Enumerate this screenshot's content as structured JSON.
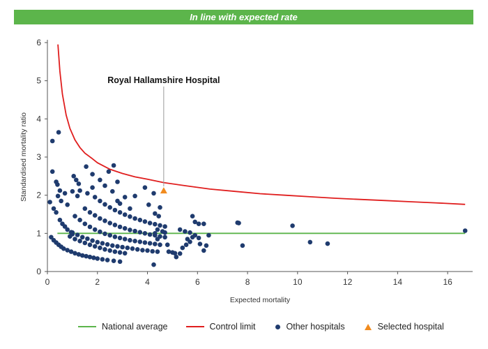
{
  "banner": {
    "text": "In line with expected rate"
  },
  "colors": {
    "banner": "#5cb54b",
    "national_average": "#5cb54b",
    "control_limit": "#e01e1e",
    "other_hospitals": "#1f3b6e",
    "selected_hospital": "#f18b1e"
  },
  "chart_data": {
    "type": "scatter",
    "xlabel": "Expected mortality",
    "ylabel": "Standardised mortality ratio",
    "xlim": [
      0,
      17
    ],
    "ylim": [
      0,
      6
    ],
    "xticks": [
      0,
      2,
      4,
      6,
      8,
      10,
      12,
      14,
      16
    ],
    "yticks": [
      0,
      1,
      2,
      3,
      4,
      5,
      6
    ],
    "grid": false,
    "legend_position": "bottom",
    "annotation": {
      "text": "Royal Hallamshire Hospital",
      "x": 4.65,
      "y": 2.12
    },
    "national_average": {
      "name": "National average",
      "y": 1,
      "x_range": [
        0.4,
        16.7
      ]
    },
    "control_limit": {
      "name": "Control limit",
      "points": [
        [
          0.42,
          5.95
        ],
        [
          0.5,
          5.25
        ],
        [
          0.6,
          4.65
        ],
        [
          0.75,
          4.1
        ],
        [
          0.9,
          3.75
        ],
        [
          1.1,
          3.45
        ],
        [
          1.3,
          3.25
        ],
        [
          1.5,
          3.1
        ],
        [
          1.75,
          2.98
        ],
        [
          2.0,
          2.85
        ],
        [
          2.5,
          2.68
        ],
        [
          3.0,
          2.57
        ],
        [
          3.5,
          2.48
        ],
        [
          4.0,
          2.42
        ],
        [
          4.65,
          2.33
        ],
        [
          5.5,
          2.25
        ],
        [
          6.5,
          2.16
        ],
        [
          7.5,
          2.1
        ],
        [
          8.5,
          2.04
        ],
        [
          9.5,
          2.0
        ],
        [
          10.5,
          1.96
        ],
        [
          11.5,
          1.92
        ],
        [
          12.5,
          1.89
        ],
        [
          13.5,
          1.86
        ],
        [
          14.5,
          1.83
        ],
        [
          15.5,
          1.8
        ],
        [
          16.7,
          1.76
        ]
      ]
    },
    "series": [
      {
        "name": "Other hospitals",
        "points": [
          [
            0.2,
            3.42
          ],
          [
            0.45,
            3.65
          ],
          [
            0.2,
            2.62
          ],
          [
            0.35,
            2.35
          ],
          [
            0.4,
            2.28
          ],
          [
            0.5,
            2.12
          ],
          [
            0.42,
            1.98
          ],
          [
            0.7,
            2.05
          ],
          [
            0.55,
            1.85
          ],
          [
            0.1,
            1.82
          ],
          [
            0.25,
            1.65
          ],
          [
            0.35,
            1.55
          ],
          [
            0.8,
            1.75
          ],
          [
            1.05,
            2.5
          ],
          [
            1.15,
            2.4
          ],
          [
            1.25,
            2.3
          ],
          [
            1.0,
            2.1
          ],
          [
            1.2,
            1.98
          ],
          [
            0.5,
            1.35
          ],
          [
            0.6,
            1.25
          ],
          [
            0.7,
            1.18
          ],
          [
            0.8,
            1.1
          ],
          [
            0.95,
            1.03
          ],
          [
            1.0,
            0.98
          ],
          [
            0.15,
            0.9
          ],
          [
            0.25,
            0.82
          ],
          [
            0.35,
            0.76
          ],
          [
            0.45,
            0.7
          ],
          [
            0.55,
            0.65
          ],
          [
            0.65,
            0.6
          ],
          [
            0.8,
            0.56
          ],
          [
            0.95,
            0.52
          ],
          [
            1.1,
            0.48
          ],
          [
            1.25,
            0.45
          ],
          [
            1.4,
            0.42
          ],
          [
            1.55,
            0.4
          ],
          [
            1.7,
            0.38
          ],
          [
            1.85,
            0.36
          ],
          [
            2.0,
            0.34
          ],
          [
            2.2,
            0.32
          ],
          [
            2.4,
            0.3
          ],
          [
            2.65,
            0.28
          ],
          [
            2.9,
            0.26
          ],
          [
            4.25,
            0.18
          ],
          [
            0.9,
            0.92
          ],
          [
            1.1,
            0.85
          ],
          [
            1.3,
            0.8
          ],
          [
            1.5,
            0.75
          ],
          [
            1.7,
            0.7
          ],
          [
            1.9,
            0.66
          ],
          [
            2.1,
            0.62
          ],
          [
            2.3,
            0.58
          ],
          [
            2.5,
            0.55
          ],
          [
            2.7,
            0.52
          ],
          [
            2.9,
            0.5
          ],
          [
            3.1,
            0.48
          ],
          [
            1.0,
            1.02
          ],
          [
            1.2,
            0.96
          ],
          [
            1.4,
            0.9
          ],
          [
            1.6,
            0.86
          ],
          [
            1.8,
            0.81
          ],
          [
            2.0,
            0.77
          ],
          [
            2.2,
            0.74
          ],
          [
            2.4,
            0.71
          ],
          [
            2.6,
            0.68
          ],
          [
            2.8,
            0.66
          ],
          [
            3.0,
            0.64
          ],
          [
            3.2,
            0.62
          ],
          [
            3.4,
            0.6
          ],
          [
            3.6,
            0.58
          ],
          [
            3.8,
            0.56
          ],
          [
            4.0,
            0.55
          ],
          [
            4.2,
            0.53
          ],
          [
            4.4,
            0.52
          ],
          [
            1.1,
            1.45
          ],
          [
            1.3,
            1.35
          ],
          [
            1.5,
            1.25
          ],
          [
            1.7,
            1.17
          ],
          [
            1.9,
            1.1
          ],
          [
            2.1,
            1.04
          ],
          [
            2.3,
            0.99
          ],
          [
            2.5,
            0.95
          ],
          [
            2.7,
            0.91
          ],
          [
            2.9,
            0.88
          ],
          [
            3.1,
            0.85
          ],
          [
            3.3,
            0.82
          ],
          [
            3.5,
            0.8
          ],
          [
            3.7,
            0.78
          ],
          [
            3.9,
            0.76
          ],
          [
            4.1,
            0.74
          ],
          [
            4.3,
            0.72
          ],
          [
            4.5,
            0.7
          ],
          [
            1.5,
            1.65
          ],
          [
            1.7,
            1.55
          ],
          [
            1.9,
            1.47
          ],
          [
            2.1,
            1.39
          ],
          [
            2.3,
            1.33
          ],
          [
            2.5,
            1.27
          ],
          [
            2.7,
            1.22
          ],
          [
            2.9,
            1.17
          ],
          [
            3.1,
            1.13
          ],
          [
            3.3,
            1.09
          ],
          [
            3.5,
            1.06
          ],
          [
            3.7,
            1.03
          ],
          [
            3.9,
            1.0
          ],
          [
            4.1,
            0.97
          ],
          [
            4.3,
            0.95
          ],
          [
            4.5,
            0.92
          ],
          [
            4.7,
            0.9
          ],
          [
            1.9,
            1.95
          ],
          [
            2.1,
            1.85
          ],
          [
            2.3,
            1.76
          ],
          [
            2.5,
            1.68
          ],
          [
            2.7,
            1.61
          ],
          [
            2.9,
            1.55
          ],
          [
            3.1,
            1.49
          ],
          [
            3.3,
            1.44
          ],
          [
            3.5,
            1.39
          ],
          [
            3.7,
            1.35
          ],
          [
            3.9,
            1.31
          ],
          [
            4.1,
            1.27
          ],
          [
            4.3,
            1.24
          ],
          [
            4.5,
            1.21
          ],
          [
            4.7,
            1.18
          ],
          [
            1.3,
            2.12
          ],
          [
            1.6,
            2.05
          ],
          [
            1.8,
            2.2
          ],
          [
            2.1,
            2.4
          ],
          [
            2.3,
            2.25
          ],
          [
            2.6,
            2.1
          ],
          [
            2.8,
            1.85
          ],
          [
            2.9,
            1.78
          ],
          [
            3.1,
            1.95
          ],
          [
            3.3,
            1.65
          ],
          [
            3.5,
            1.98
          ],
          [
            3.9,
            2.2
          ],
          [
            4.05,
            1.75
          ],
          [
            4.3,
            1.52
          ],
          [
            4.45,
            1.45
          ],
          [
            4.5,
            1.68
          ],
          [
            4.3,
            1.0
          ],
          [
            4.4,
            0.85
          ],
          [
            1.55,
            2.75
          ],
          [
            1.8,
            2.55
          ],
          [
            2.45,
            2.62
          ],
          [
            2.65,
            2.78
          ],
          [
            2.8,
            2.35
          ],
          [
            4.25,
            2.05
          ],
          [
            4.4,
            1.1
          ],
          [
            4.6,
            1.05
          ],
          [
            4.7,
            1.02
          ],
          [
            4.8,
            0.7
          ],
          [
            4.85,
            0.52
          ],
          [
            5.0,
            0.5
          ],
          [
            5.1,
            0.48
          ],
          [
            5.3,
            0.47
          ],
          [
            5.15,
            0.38
          ],
          [
            5.3,
            1.1
          ],
          [
            5.5,
            1.05
          ],
          [
            5.7,
            1.02
          ],
          [
            5.6,
            0.85
          ],
          [
            5.4,
            0.62
          ],
          [
            5.55,
            0.7
          ],
          [
            5.7,
            0.78
          ],
          [
            5.8,
            0.9
          ],
          [
            5.9,
            0.95
          ],
          [
            6.05,
            0.88
          ],
          [
            6.1,
            0.72
          ],
          [
            6.25,
            0.55
          ],
          [
            6.35,
            0.68
          ],
          [
            6.45,
            0.95
          ],
          [
            5.8,
            1.45
          ],
          [
            5.9,
            1.3
          ],
          [
            6.05,
            1.25
          ],
          [
            6.25,
            1.25
          ],
          [
            7.6,
            1.28
          ],
          [
            7.65,
            1.27
          ],
          [
            7.8,
            0.68
          ],
          [
            9.8,
            1.2
          ],
          [
            10.5,
            0.77
          ],
          [
            11.2,
            0.73
          ],
          [
            16.7,
            1.07
          ]
        ]
      },
      {
        "name": "Selected hospital",
        "points": [
          [
            4.65,
            2.12
          ]
        ]
      }
    ]
  }
}
